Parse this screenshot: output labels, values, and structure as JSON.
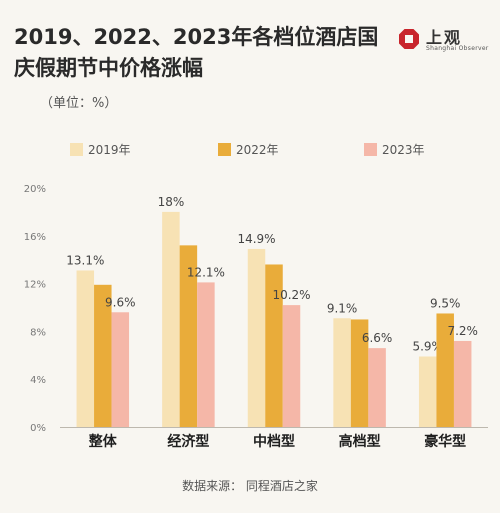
{
  "title": "2019、2022、2023年各档位酒店国庆假期节中价格涨幅",
  "unit": "（单位：%）",
  "logo": {
    "name": "上观",
    "sub": "Shanghai Observer"
  },
  "source": "数据来源：  同程酒店之家",
  "colors": {
    "2019年": "#f7e2b4",
    "2022年": "#e9ac3a",
    "2023年": "#f5b7a8"
  },
  "chart_data": {
    "type": "bar",
    "categories": [
      "整体",
      "经济型",
      "中档型",
      "高档型",
      "豪华型"
    ],
    "series": [
      {
        "name": "2019年",
        "values": [
          13.1,
          18,
          14.9,
          9.1,
          5.9
        ],
        "labels": [
          "13.1%",
          "18%",
          "14.9%",
          "9.1%",
          "5.9%"
        ]
      },
      {
        "name": "2022年",
        "values": [
          11.9,
          15.2,
          13.6,
          9.0,
          9.5
        ],
        "labels": [
          "",
          "",
          "",
          "",
          "9.5%"
        ]
      },
      {
        "name": "2023年",
        "values": [
          9.6,
          12.1,
          10.2,
          6.6,
          7.2
        ],
        "labels": [
          "9.6%",
          "12.1%",
          "10.2%",
          "6.6%",
          "7.2%"
        ]
      }
    ],
    "ylim": [
      0,
      20
    ],
    "yticks": [
      "0%",
      "4%",
      "8%",
      "12%",
      "16%",
      "20%"
    ],
    "legend": "top",
    "grid": false
  }
}
